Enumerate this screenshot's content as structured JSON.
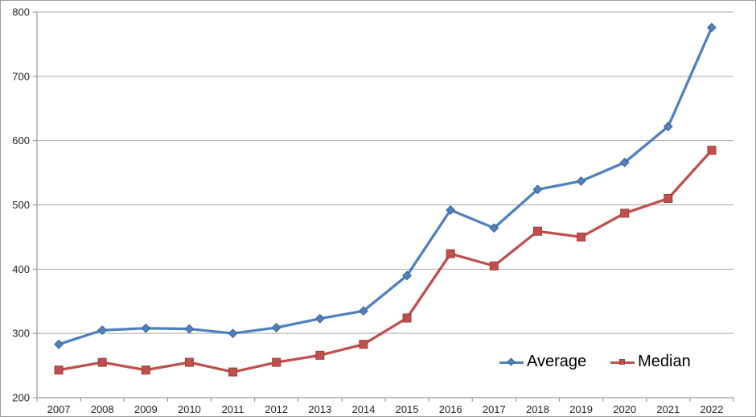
{
  "chart_data": {
    "type": "line",
    "title": "",
    "xlabel": "",
    "ylabel": "",
    "categories": [
      "2007",
      "2008",
      "2009",
      "2010",
      "2011",
      "2012",
      "2013",
      "2014",
      "2015",
      "2016",
      "2017",
      "2018",
      "2019",
      "2020",
      "2021",
      "2022"
    ],
    "series": [
      {
        "name": "Average",
        "values": [
          283,
          305,
          308,
          307,
          300,
          309,
          323,
          335,
          390,
          492,
          464,
          524,
          537,
          566,
          622,
          776
        ],
        "color": "#4f81bd",
        "marker": "diamond",
        "marker_border": "#3a6494"
      },
      {
        "name": "Median",
        "values": [
          243,
          255,
          243,
          255,
          240,
          255,
          266,
          283,
          324,
          424,
          405,
          459,
          450,
          487,
          510,
          585
        ],
        "color": "#c0504d",
        "marker": "square",
        "marker_border": "#9e3b38"
      }
    ],
    "ylim": [
      200,
      800
    ],
    "y_ticks": [
      200,
      300,
      400,
      500,
      600,
      700,
      800
    ],
    "grid": true,
    "legend_position": "inside-bottom-right",
    "colors": {
      "gridline": "#a6a6a6",
      "axis": "#9b9b9b",
      "tick_text": "#262626",
      "background": "#ffffff",
      "frame_border": "#9a9a9a"
    }
  },
  "legend": {
    "items": [
      {
        "label": "Average"
      },
      {
        "label": "Median"
      }
    ]
  }
}
